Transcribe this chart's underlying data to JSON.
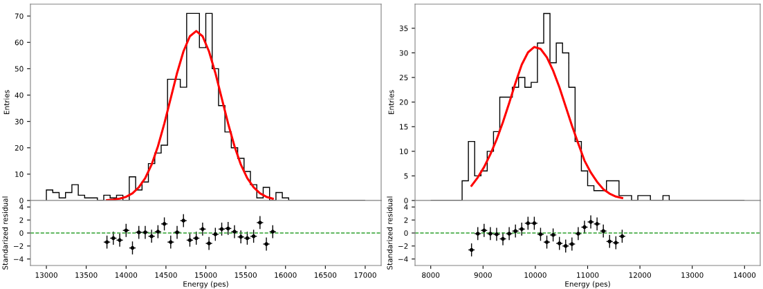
{
  "chart_data": [
    {
      "type": "histogram",
      "ylabel": "Entries",
      "color": "#000000",
      "bins": [
        13000,
        13080,
        13160,
        13240,
        13320,
        13400,
        13480,
        13560,
        13640,
        13720,
        13800,
        13880,
        13960,
        14040,
        14120,
        14200,
        14280,
        14360,
        14440,
        14520,
        14600,
        14680,
        14760,
        14840,
        14920,
        15000,
        15080,
        15160,
        15240,
        15320,
        15400,
        15480,
        15560,
        15640,
        15720,
        15800,
        15880,
        15960,
        16040,
        16120,
        16200,
        16280,
        16360,
        16440,
        16520,
        16600,
        16680,
        16760,
        16840,
        16920,
        17000
      ],
      "values": [
        4,
        3,
        1,
        3,
        6,
        2,
        1,
        1,
        0,
        2,
        1,
        2,
        0,
        9,
        4,
        7,
        14,
        18,
        21,
        46,
        46,
        43,
        71,
        71,
        58,
        71,
        50,
        36,
        26,
        20,
        16,
        11,
        6,
        1,
        5,
        0,
        3,
        1,
        0,
        0,
        0,
        0,
        0,
        0,
        0,
        0,
        0,
        0,
        0,
        0
      ],
      "series": [
        {
          "type": "line",
          "color": "#ff0000",
          "x": [
            13760,
            13840,
            13920,
            14000,
            14080,
            14160,
            14240,
            14320,
            14400,
            14480,
            14560,
            14640,
            14720,
            14800,
            14880,
            14960,
            15040,
            15120,
            15200,
            15280,
            15360,
            15440,
            15520,
            15600,
            15680,
            15760,
            15840
          ],
          "values": [
            0.1,
            0.3,
            0.7,
            1.4,
            2.7,
            5.0,
            8.5,
            13.6,
            20.6,
            29.2,
            38.8,
            48.4,
            56.6,
            62.3,
            64.3,
            62.3,
            56.6,
            48.4,
            38.8,
            29.2,
            20.6,
            13.6,
            8.5,
            5.0,
            2.7,
            1.4,
            0.7
          ]
        }
      ],
      "xlim": [
        12800,
        17200
      ],
      "xticks": [
        13000,
        13500,
        14000,
        14500,
        15000,
        15500,
        16000,
        16500,
        17000
      ],
      "ylim": [
        0,
        74.5
      ],
      "yticks": [
        0,
        10,
        20,
        30,
        40,
        50,
        60,
        70
      ],
      "tick_labels": "y",
      "grid": false,
      "legend": false
    },
    {
      "type": "scatter",
      "xlabel": "Energy (pes)",
      "ylabel": "Standarized residual",
      "color": "#000000",
      "marker": "circle",
      "x": [
        13760,
        13840,
        13920,
        14000,
        14080,
        14160,
        14240,
        14320,
        14400,
        14480,
        14560,
        14640,
        14720,
        14800,
        14880,
        14960,
        15040,
        15120,
        15200,
        15280,
        15360,
        15440,
        15520,
        15600,
        15680,
        15760,
        15840
      ],
      "values": [
        -1.4,
        -0.8,
        -1.1,
        0.4,
        -2.3,
        0.1,
        0.1,
        -0.5,
        0.2,
        1.4,
        -1.4,
        0.1,
        1.9,
        -1.1,
        -0.8,
        0.6,
        -1.6,
        -0.2,
        0.6,
        0.7,
        0.2,
        -0.6,
        -0.8,
        -0.5,
        1.6,
        -1.7,
        0.2
      ],
      "errors": [
        1,
        1,
        1,
        1,
        1,
        1,
        1,
        1,
        1,
        1,
        1,
        1,
        1,
        1,
        1,
        1,
        1,
        1,
        1,
        1,
        1,
        1,
        1,
        1,
        1,
        1,
        1
      ],
      "xerrors": [
        40,
        40,
        40,
        40,
        40,
        40,
        40,
        40,
        40,
        40,
        40,
        40,
        40,
        40,
        40,
        40,
        40,
        40,
        40,
        40,
        40,
        40,
        40,
        40,
        40,
        40,
        40
      ],
      "ref_lines": [
        {
          "axis": "y",
          "value": 0,
          "color": "#2ca02c",
          "line_style": "dashed"
        }
      ],
      "xlim": [
        12800,
        17200
      ],
      "xticks": [
        13000,
        13500,
        14000,
        14500,
        15000,
        15500,
        16000,
        16500,
        17000
      ],
      "ylim": [
        -5,
        5
      ],
      "yticks": [
        -4,
        -2,
        0,
        2,
        4
      ],
      "grid": false,
      "legend": false
    },
    {
      "type": "histogram",
      "ylabel": "Entries",
      "color": "#000000",
      "bins": [
        8000,
        8120,
        8240,
        8360,
        8480,
        8600,
        8720,
        8840,
        8960,
        9080,
        9200,
        9320,
        9440,
        9560,
        9680,
        9800,
        9920,
        10040,
        10160,
        10280,
        10400,
        10520,
        10640,
        10760,
        10880,
        11000,
        11120,
        11240,
        11360,
        11480,
        11600,
        11720,
        11840,
        11960,
        12080,
        12200,
        12320,
        12440,
        12560,
        12680,
        12800,
        12920,
        13040,
        13160,
        13280,
        13400,
        13520,
        13640,
        13760,
        13880,
        14000
      ],
      "values": [
        0,
        0,
        0,
        0,
        0,
        4,
        12,
        5,
        6,
        10,
        14,
        21,
        21,
        23,
        25,
        23,
        24,
        32,
        38,
        28,
        32,
        30,
        23,
        12,
        6,
        3,
        2,
        2,
        4,
        4,
        1,
        1,
        0,
        1,
        1,
        0,
        0,
        1,
        0,
        0,
        0,
        0,
        0,
        0,
        0,
        0,
        0,
        0,
        0,
        0
      ],
      "series": [
        {
          "type": "line",
          "color": "#ff0000",
          "x": [
            8780,
            8900,
            9020,
            9140,
            9260,
            9380,
            9500,
            9620,
            9740,
            9860,
            9980,
            10100,
            10220,
            10340,
            10460,
            10580,
            10700,
            10820,
            10940,
            11060,
            11180,
            11300,
            11420,
            11540,
            11660
          ],
          "values": [
            3.0,
            4.7,
            6.8,
            9.4,
            12.4,
            15.9,
            19.8,
            23.9,
            27.6,
            30.1,
            31.2,
            30.8,
            29.1,
            26.4,
            23.0,
            19.1,
            15.2,
            11.6,
            8.1,
            5.7,
            3.8,
            2.3,
            1.4,
            0.8,
            0.5
          ]
        }
      ],
      "xlim": [
        7700,
        14300
      ],
      "xticks": [
        8000,
        9000,
        10000,
        11000,
        12000,
        13000,
        14000
      ],
      "ylim": [
        0,
        39.9
      ],
      "yticks": [
        0,
        5,
        10,
        15,
        20,
        25,
        30,
        35
      ],
      "tick_labels": "y",
      "grid": false,
      "legend": false
    },
    {
      "type": "scatter",
      "xlabel": "Energy (pes)",
      "ylabel": "Standarized residual",
      "color": "#000000",
      "marker": "circle",
      "x": [
        8780,
        8900,
        9020,
        9140,
        9260,
        9380,
        9500,
        9620,
        9740,
        9860,
        9980,
        10100,
        10220,
        10340,
        10460,
        10580,
        10700,
        10820,
        10940,
        11060,
        11180,
        11300,
        11420,
        11540,
        11660
      ],
      "values": [
        -2.6,
        -0.1,
        0.4,
        -0.1,
        -0.2,
        -0.9,
        -0.1,
        0.3,
        0.6,
        1.5,
        1.5,
        -0.2,
        -1.4,
        -0.3,
        -1.6,
        -2.0,
        -1.7,
        -0.1,
        0.9,
        1.7,
        1.4,
        0.3,
        -1.3,
        -1.5,
        -0.5
      ],
      "errors": [
        1,
        1,
        1,
        1,
        1,
        1,
        1,
        1,
        1,
        1,
        1,
        1,
        1,
        1,
        1,
        1,
        1,
        1,
        1,
        1,
        1,
        1,
        1,
        1,
        1
      ],
      "xerrors": [
        60,
        60,
        60,
        60,
        60,
        60,
        60,
        60,
        60,
        60,
        60,
        60,
        60,
        60,
        60,
        60,
        60,
        60,
        60,
        60,
        60,
        60,
        60,
        60,
        60
      ],
      "ref_lines": [
        {
          "axis": "y",
          "value": 0,
          "color": "#2ca02c",
          "line_style": "dashed"
        }
      ],
      "xlim": [
        7700,
        14300
      ],
      "xticks": [
        8000,
        9000,
        10000,
        11000,
        12000,
        13000,
        14000
      ],
      "ylim": [
        -5,
        5
      ],
      "yticks": [
        -4,
        -2,
        0,
        2,
        4
      ],
      "grid": false,
      "legend": false
    }
  ]
}
